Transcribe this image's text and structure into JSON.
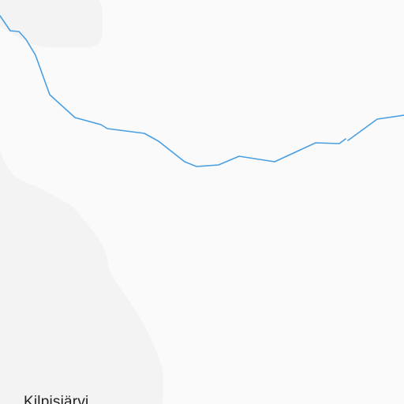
{
  "map": {
    "colors": {
      "background": "#fafafa",
      "terrain_shade": "#f3f3f3",
      "river": "#4a9fe0",
      "label_text": "#222222"
    },
    "labels": {
      "place": "Kilpisjärvi"
    }
  }
}
